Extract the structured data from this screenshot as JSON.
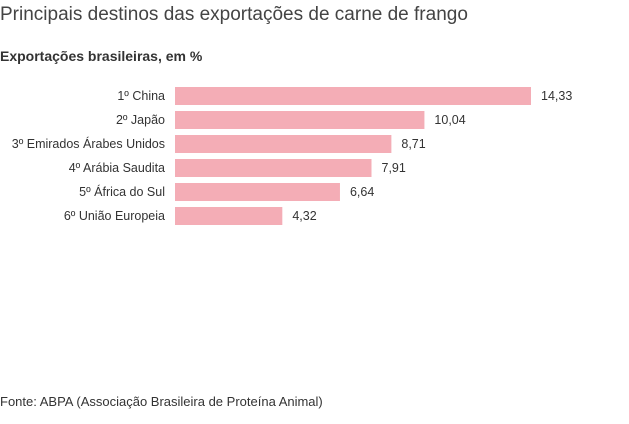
{
  "header": {
    "title": "Principais destinos das exportações de carne de frango",
    "subtitle": "Exportações brasileiras, em %"
  },
  "footer": {
    "source": "Fonte: ABPA (Associação Brasileira de Proteína Animal)"
  },
  "colors": {
    "bar": "#f4adb6",
    "text": "#333333"
  },
  "chart_data": {
    "type": "bar",
    "orientation": "horizontal",
    "categories": [
      "1º China",
      "2º Japão",
      "3º Emirados Árabes Unidos",
      "4º Arábia Saudita",
      "5º África do Sul",
      "6º União Europeia"
    ],
    "values": [
      14.33,
      10.04,
      8.71,
      7.91,
      6.64,
      4.32
    ],
    "value_labels": [
      "14,33",
      "10,04",
      "8,71",
      "7,91",
      "6,64",
      "4,32"
    ],
    "title": "Principais destinos das exportações de carne de frango",
    "subtitle": "Exportações brasileiras, em %",
    "xlim": [
      0,
      14.33
    ],
    "grid": false,
    "legend": "none"
  }
}
